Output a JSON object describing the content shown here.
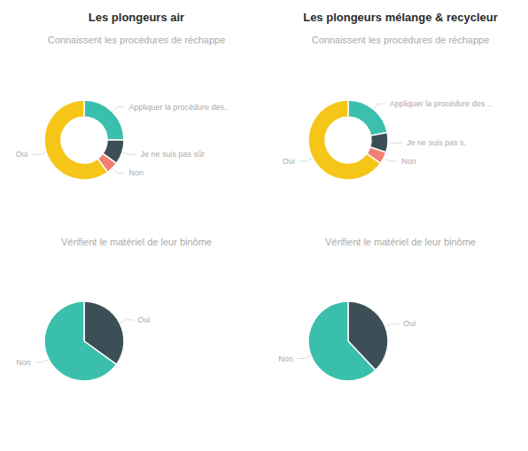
{
  "chart_data": [
    {
      "type": "donut",
      "title": "Les plongeurs air",
      "subtitle": "Connaissent les procédures de réchappe",
      "categories": [
        "Appliquer la procédure des..",
        "Je ne suis pas sûr",
        "Non",
        "Oui"
      ],
      "values": [
        25,
        10,
        5,
        60
      ],
      "colors": [
        "#3BBFAD",
        "#3D4F56",
        "#F08070",
        "#F5C518"
      ]
    },
    {
      "type": "donut",
      "title": "Les plongeurs mélange & recycleur",
      "subtitle": "Connaissent les procédures de réchappe",
      "categories": [
        "Appliquer la procédure des ..",
        "Je ne suis pas s.",
        "Non",
        "Oui"
      ],
      "values": [
        22,
        8,
        5,
        65
      ],
      "colors": [
        "#3BBFAD",
        "#3D4F56",
        "#F08070",
        "#F5C518"
      ]
    },
    {
      "type": "pie",
      "subtitle": "Vérifient le matériel de leur binôme",
      "categories": [
        "Oui",
        "Non"
      ],
      "values": [
        35,
        65
      ],
      "colors": [
        "#3D4F56",
        "#3BBFAD"
      ]
    },
    {
      "type": "pie",
      "subtitle": "Vérifient le matériel de leur binôme",
      "categories": [
        "Oui",
        "Non"
      ],
      "values": [
        38,
        62
      ],
      "colors": [
        "#3D4F56",
        "#3BBFAD"
      ]
    }
  ]
}
